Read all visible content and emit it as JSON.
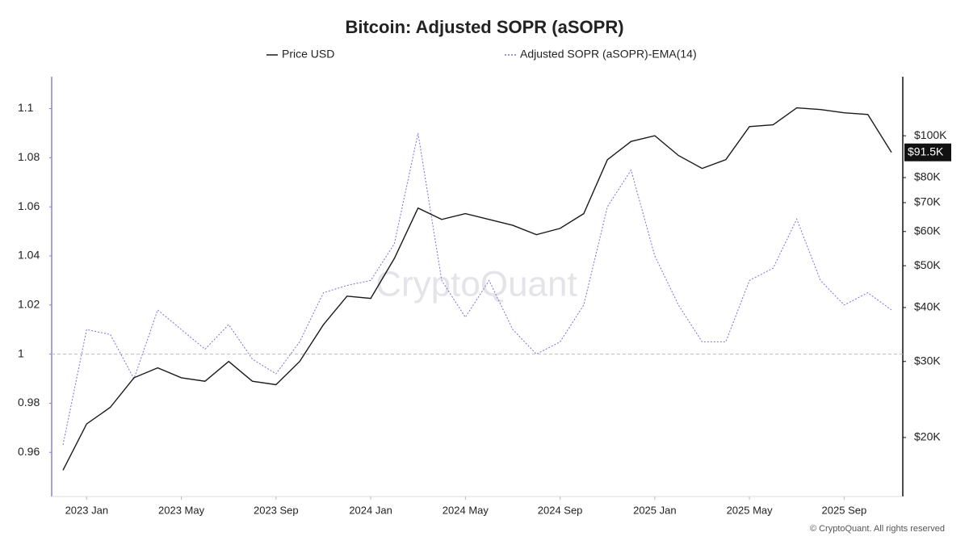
{
  "chart_data": {
    "type": "line",
    "title": "Bitcoin: Adjusted SOPR (aSOPR)",
    "watermark": "CryptoQuant",
    "footer": "© CryptoQuant. All rights reserved",
    "x": [
      "2022-12",
      "2023-01",
      "2023-02",
      "2023-03",
      "2023-04",
      "2023-05",
      "2023-06",
      "2023-07",
      "2023-08",
      "2023-09",
      "2023-10",
      "2023-11",
      "2023-12",
      "2024-01",
      "2024-02",
      "2024-03",
      "2024-04",
      "2024-05",
      "2024-06",
      "2024-07",
      "2024-08",
      "2024-09",
      "2024-10",
      "2024-11",
      "2024-12",
      "2025-01",
      "2025-02",
      "2025-03",
      "2025-04",
      "2025-05",
      "2025-06",
      "2025-07",
      "2025-08",
      "2025-09",
      "2025-10",
      "2025-11"
    ],
    "xlim": [
      "2022-12",
      "2025-11"
    ],
    "xticks": [
      {
        "value": "2023-01",
        "label": "2023 Jan"
      },
      {
        "value": "2023-05",
        "label": "2023 May"
      },
      {
        "value": "2023-09",
        "label": "2023 Sep"
      },
      {
        "value": "2024-01",
        "label": "2024 Jan"
      },
      {
        "value": "2024-05",
        "label": "2024 May"
      },
      {
        "value": "2024-09",
        "label": "2024 Sep"
      },
      {
        "value": "2025-01",
        "label": "2025 Jan"
      },
      {
        "value": "2025-05",
        "label": "2025 May"
      },
      {
        "value": "2025-09",
        "label": "2025 Sep"
      }
    ],
    "series": [
      {
        "name": "Price USD",
        "color": "#1a1a1a",
        "axis": "y2",
        "values": [
          16800,
          21500,
          23500,
          27500,
          29000,
          27500,
          27000,
          30000,
          27000,
          26500,
          30000,
          36500,
          42500,
          42000,
          52000,
          68000,
          64000,
          66000,
          64000,
          62000,
          59000,
          61000,
          66000,
          88000,
          97000,
          100000,
          90000,
          84000,
          88000,
          105000,
          106000,
          116000,
          115000,
          113000,
          112000,
          91500
        ]
      },
      {
        "name": "Adjusted SOPR (aSOPR)-EMA(14)",
        "color": "#7b6fe0",
        "axis": "y",
        "values": [
          0.963,
          1.01,
          1.008,
          0.99,
          1.018,
          1.01,
          1.002,
          1.012,
          0.998,
          0.992,
          1.005,
          1.025,
          1.028,
          1.03,
          1.045,
          1.09,
          1.03,
          1.015,
          1.03,
          1.01,
          1.0,
          1.005,
          1.02,
          1.06,
          1.075,
          1.04,
          1.02,
          1.005,
          1.005,
          1.03,
          1.035,
          1.055,
          1.03,
          1.02,
          1.025,
          1.018
        ]
      }
    ],
    "ylim": [
      0.942,
      1.113
    ],
    "yticks": [
      0.96,
      0.98,
      {
        "value": 1,
        "label": "1"
      },
      1.02,
      1.04,
      1.06,
      1.08,
      1.1
    ],
    "y2lim": [
      14600,
      137000
    ],
    "y2_log": true,
    "y2ticks": [
      {
        "value": 20000,
        "label": "$20K"
      },
      {
        "value": 30000,
        "label": "$30K"
      },
      {
        "value": 40000,
        "label": "$40K"
      },
      {
        "value": 50000,
        "label": "$50K"
      },
      {
        "value": 60000,
        "label": "$60K"
      },
      {
        "value": 70000,
        "label": "$70K"
      },
      {
        "value": 80000,
        "label": "$80K"
      },
      {
        "value": 100000,
        "label": "$100K"
      }
    ],
    "reference_line": 1,
    "price_marker": {
      "value": 91500,
      "label": "$91.5K"
    }
  }
}
